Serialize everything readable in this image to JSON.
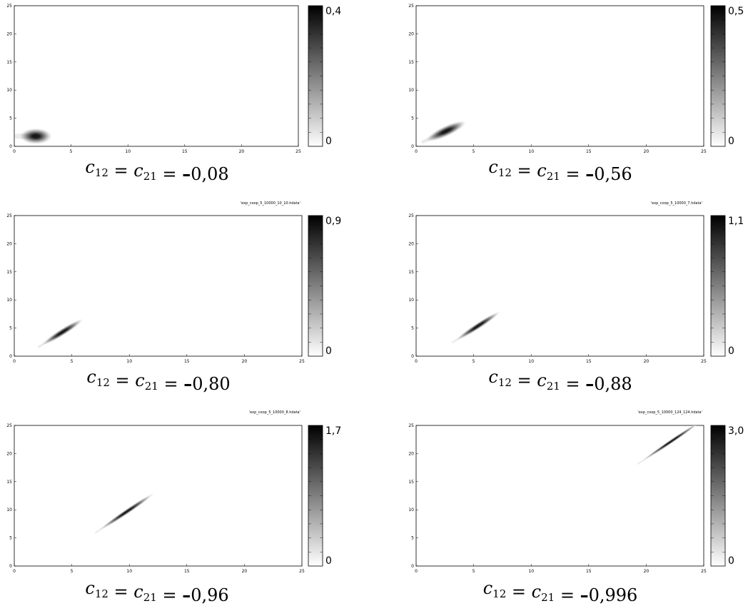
{
  "chart_data": [
    {
      "type": "heatmap",
      "file_label": "",
      "caption": {
        "lhs": "c",
        "lhs_sub": "12",
        "mid": "= c",
        "mid_sub": "21",
        "rhs": "= ",
        "value": "0,08"
      },
      "xlim": [
        0,
        25
      ],
      "ylim": [
        0,
        25
      ],
      "x_ticks": [
        "0",
        "5",
        "10",
        "15",
        "20",
        "25"
      ],
      "y_ticks": [
        "0",
        "5",
        "10",
        "15",
        "20",
        "25"
      ],
      "colorbar": {
        "min_label": "0",
        "max_label": "0,4",
        "max": 0.4
      },
      "peak": {
        "x": 1.9,
        "y": 1.8,
        "sx": 0.75,
        "sy": 0.42,
        "angle_deg": 0
      }
    },
    {
      "type": "heatmap",
      "file_label": "",
      "caption": {
        "lhs": "c",
        "lhs_sub": "12",
        "mid": "= c",
        "mid_sub": "21",
        "rhs": "= ",
        "value": "0,56"
      },
      "xlim": [
        0,
        25
      ],
      "ylim": [
        0,
        25
      ],
      "x_ticks": [
        "0",
        "5",
        "10",
        "15",
        "20",
        "25"
      ],
      "y_ticks": [
        "0",
        "5",
        "10",
        "15",
        "20",
        "25"
      ],
      "colorbar": {
        "min_label": "0",
        "max_label": "0,5",
        "max": 0.5
      },
      "peak": {
        "x": 2.6,
        "y": 2.7,
        "sx": 1.0,
        "sy": 0.28,
        "angle_deg": 25
      }
    },
    {
      "type": "heatmap",
      "file_label": "'exp_coop_5_10000_10_10.hdata'",
      "caption": {
        "lhs": "c",
        "lhs_sub": "12",
        "mid": "= c",
        "mid_sub": "21",
        "rhs": "= ",
        "value": "0,80"
      },
      "xlim": [
        0,
        25
      ],
      "ylim": [
        0,
        25
      ],
      "x_ticks": [
        "0",
        "5",
        "10",
        "15",
        "20",
        "25"
      ],
      "y_ticks": [
        "0",
        "5",
        "10",
        "15",
        "20",
        "25"
      ],
      "colorbar": {
        "min_label": "0",
        "max_label": "0,9",
        "max": 0.9
      },
      "peak": {
        "x": 4.2,
        "y": 4.3,
        "sx": 1.1,
        "sy": 0.18,
        "angle_deg": 32
      }
    },
    {
      "type": "heatmap",
      "file_label": "'exp_coop_5_10000_7.hdata'",
      "caption": {
        "lhs": "c",
        "lhs_sub": "12",
        "mid": "= c",
        "mid_sub": "21",
        "rhs": "= ",
        "value": "0,88"
      },
      "xlim": [
        0,
        25
      ],
      "ylim": [
        0,
        25
      ],
      "x_ticks": [
        "0",
        "5",
        "10",
        "15",
        "20",
        "25"
      ],
      "y_ticks": [
        "0",
        "5",
        "10",
        "15",
        "20",
        "25"
      ],
      "colorbar": {
        "min_label": "0",
        "max_label": "1,1",
        "max": 1.1
      },
      "peak": {
        "x": 5.4,
        "y": 5.4,
        "sx": 1.2,
        "sy": 0.16,
        "angle_deg": 33
      }
    },
    {
      "type": "heatmap",
      "file_label": "'exp_coop_5_10000_8.hdata'",
      "caption": {
        "lhs": "c",
        "lhs_sub": "12",
        "mid": "= c",
        "mid_sub": "21",
        "rhs": "= ",
        "value": "0,96"
      },
      "xlim": [
        0,
        25
      ],
      "ylim": [
        0,
        25
      ],
      "x_ticks": [
        "0",
        "5",
        "10",
        "15",
        "20",
        "25"
      ],
      "y_ticks": [
        "0",
        "5",
        "10",
        "15",
        "20",
        "25"
      ],
      "colorbar": {
        "min_label": "0",
        "max_label": "1,7",
        "max": 1.7
      },
      "peak": {
        "x": 9.8,
        "y": 9.7,
        "sx": 1.5,
        "sy": 0.13,
        "angle_deg": 34
      }
    },
    {
      "type": "heatmap",
      "file_label": "'exp_coop_5_10000_124_124.hdata'",
      "caption": {
        "lhs": "c",
        "lhs_sub": "12",
        "mid": "= c",
        "mid_sub": "21",
        "rhs": "= ",
        "value": "0,996"
      },
      "xlim": [
        0,
        25
      ],
      "ylim": [
        0,
        25
      ],
      "x_ticks": [
        "0",
        "5",
        "10",
        "15",
        "20",
        "25"
      ],
      "y_ticks": [
        "0",
        "5",
        "10",
        "15",
        "20",
        "25"
      ],
      "colorbar": {
        "min_label": "0",
        "max_label": "3,0",
        "max": 3.0
      },
      "peak": {
        "x": 22.2,
        "y": 22.2,
        "sx": 1.6,
        "sy": 0.1,
        "angle_deg": 34
      }
    }
  ]
}
